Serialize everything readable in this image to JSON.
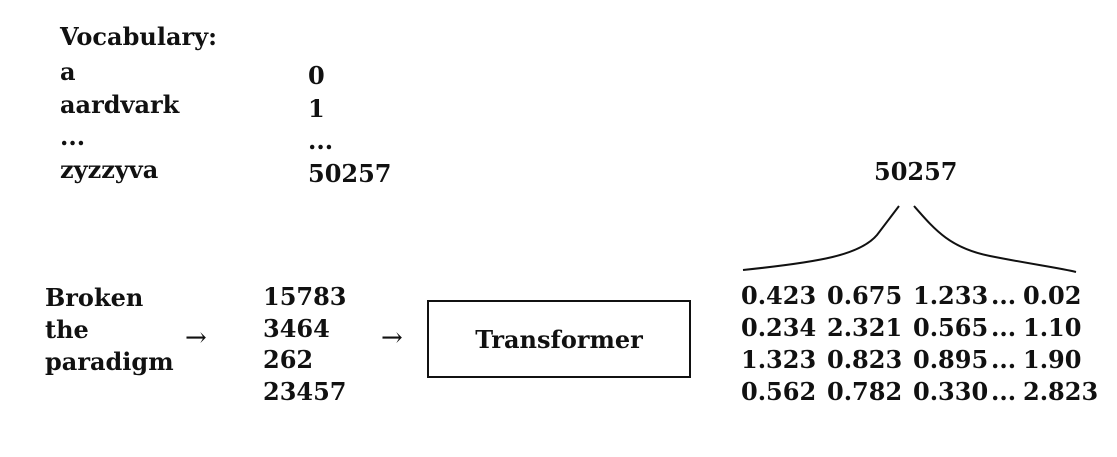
{
  "vocabulary": {
    "title": "Vocabulary:",
    "words": [
      "a",
      "aardvark",
      "...",
      "zyzzyva"
    ],
    "ids": [
      "0",
      "1",
      "...",
      "50257"
    ]
  },
  "input": {
    "words": [
      "Broken",
      "the",
      "paradigm"
    ],
    "token_ids": [
      "15783",
      "3464",
      "262",
      "23457"
    ]
  },
  "arrows": [
    "→",
    "→"
  ],
  "transformer": {
    "label": "Transformer"
  },
  "embedding_dimension": "50257",
  "embeddings": {
    "rows": [
      [
        "0.423",
        "0.675",
        "1.233",
        "...",
        "0.02"
      ],
      [
        "0.234",
        "2.321",
        "0.565",
        "...",
        "1.10"
      ],
      [
        "1.323",
        "0.823",
        "0.895",
        "...",
        "1.90"
      ],
      [
        "0.562",
        "0.782",
        "0.330",
        "...",
        "2.823"
      ]
    ]
  }
}
